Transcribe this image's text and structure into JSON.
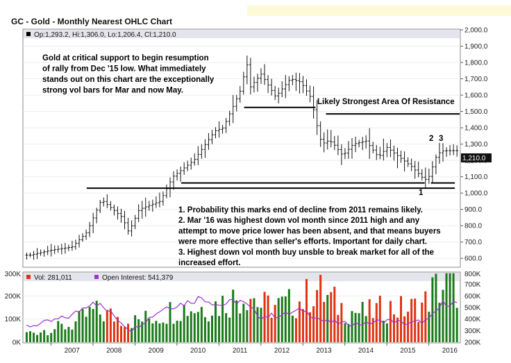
{
  "chart_data": [
    {
      "type": "ohlc",
      "title": "GC - Gold - Monthly Nearest OHLC Chart",
      "legend_text": "Op:1,293.2, Hi:1,306.0, Lo:1,206.4, Cl:1,210.0",
      "last_price_label": "1,210.0",
      "y_ticks": [
        "2,000.0",
        "1,900.0",
        "1,800.0",
        "1,700.0",
        "1,600.0",
        "1,500.0",
        "1,400.0",
        "1,300.0",
        "1,200.0",
        "1,100.0",
        "1,000.0",
        "900.0",
        "800.0",
        "700.0",
        "600.0"
      ],
      "ylim": [
        550,
        2000
      ],
      "x_ticks": [
        "2007",
        "2008",
        "2009",
        "2010",
        "2011",
        "2012",
        "2013",
        "2014",
        "2015",
        "2016"
      ],
      "price_anchors": [
        [
          2006.5,
          620
        ],
        [
          2007.0,
          650
        ],
        [
          2007.5,
          670
        ],
        [
          2007.85,
          760
        ],
        [
          2008.2,
          960
        ],
        [
          2008.7,
          850
        ],
        [
          2008.85,
          760
        ],
        [
          2009.1,
          900
        ],
        [
          2009.6,
          950
        ],
        [
          2009.9,
          1100
        ],
        [
          2010.4,
          1200
        ],
        [
          2010.9,
          1380
        ],
        [
          2011.1,
          1400
        ],
        [
          2011.55,
          1650
        ],
        [
          2011.65,
          1820
        ],
        [
          2011.75,
          1650
        ],
        [
          2012.0,
          1730
        ],
        [
          2012.35,
          1590
        ],
        [
          2012.7,
          1700
        ],
        [
          2012.95,
          1680
        ],
        [
          2013.2,
          1580
        ],
        [
          2013.3,
          1450
        ],
        [
          2013.45,
          1300
        ],
        [
          2013.6,
          1320
        ],
        [
          2013.7,
          1310
        ],
        [
          2013.95,
          1230
        ],
        [
          2014.2,
          1300
        ],
        [
          2014.5,
          1320
        ],
        [
          2014.8,
          1220
        ],
        [
          2015.0,
          1280
        ],
        [
          2015.4,
          1200
        ],
        [
          2015.6,
          1160
        ],
        [
          2015.9,
          1080
        ],
        [
          2016.0,
          1100
        ],
        [
          2016.2,
          1240
        ],
        [
          2016.35,
          1260
        ]
      ],
      "lines": {
        "support_upper": 1042,
        "support_lower": 1030,
        "resistance_2011": 1525,
        "resistance_2013": 1485,
        "resistance_level": 1485
      },
      "annotations": {
        "intro": [
          "Gold at critical support to begin resumption",
          "of rally from Dec '15 low.  What immediately",
          "stands out on this chart are the exceptionally",
          "strong vol bars for Mar and now May."
        ],
        "resistance": "Likely Strongest Area Of Resistance",
        "notes": [
          "1. Probability this marks end of decline from 2011 remains likely.",
          "2. Mar '16 was highest down vol month since 2011 high and any",
          "attempt to move price lower has been absent, and that means buyers",
          "were more effective than seller's efforts.  Important for daily chart.",
          "3. Highest down vol month buy unsble to break market for all of the",
          "increased effort."
        ],
        "marker_1": "1",
        "marker_2": "2",
        "marker_3": "3"
      }
    },
    {
      "type": "bar",
      "legend_vol": "Vol: 281,011",
      "legend_oi": "Open Interest: 541,379",
      "left_ticks": [
        "300K",
        "200K",
        "100K",
        "0K"
      ],
      "left_ylim": [
        0,
        300000
      ],
      "right_ticks": [
        "800K",
        "700K",
        "600K",
        "500K",
        "400K",
        "300K",
        "200K"
      ],
      "right_ylim": [
        200000,
        800000
      ],
      "colors": {
        "up": "#1a7a1a",
        "down": "#dd3311",
        "oi": "#9933cc"
      },
      "volume_anchors": [
        [
          2006.5,
          50000
        ],
        [
          2007.5,
          90000
        ],
        [
          2008.0,
          160000
        ],
        [
          2008.6,
          130000
        ],
        [
          2009.0,
          110000
        ],
        [
          2009.6,
          140000
        ],
        [
          2010.0,
          180000
        ],
        [
          2010.5,
          180000
        ],
        [
          2011.0,
          200000
        ],
        [
          2011.5,
          240000
        ],
        [
          2011.7,
          270000
        ],
        [
          2012.0,
          190000
        ],
        [
          2012.5,
          190000
        ],
        [
          2013.0,
          220000
        ],
        [
          2013.3,
          280000
        ],
        [
          2013.6,
          230000
        ],
        [
          2014.0,
          170000
        ],
        [
          2014.5,
          150000
        ],
        [
          2015.0,
          180000
        ],
        [
          2015.5,
          170000
        ],
        [
          2015.9,
          200000
        ],
        [
          2016.1,
          270000
        ],
        [
          2016.3,
          290000
        ]
      ],
      "oi_anchors": [
        [
          2006.5,
          340000
        ],
        [
          2007.0,
          380000
        ],
        [
          2007.5,
          430000
        ],
        [
          2008.0,
          560000
        ],
        [
          2008.5,
          430000
        ],
        [
          2008.9,
          300000
        ],
        [
          2009.3,
          400000
        ],
        [
          2009.7,
          500000
        ],
        [
          2010.2,
          540000
        ],
        [
          2010.6,
          590000
        ],
        [
          2011.0,
          520000
        ],
        [
          2011.5,
          560000
        ],
        [
          2012.0,
          420000
        ],
        [
          2012.6,
          440000
        ],
        [
          2013.0,
          480000
        ],
        [
          2013.5,
          380000
        ],
        [
          2014.0,
          360000
        ],
        [
          2014.5,
          360000
        ],
        [
          2015.0,
          390000
        ],
        [
          2015.5,
          360000
        ],
        [
          2016.0,
          390000
        ],
        [
          2016.35,
          540000
        ]
      ]
    }
  ],
  "top_banner_color": "#fdfbd6"
}
